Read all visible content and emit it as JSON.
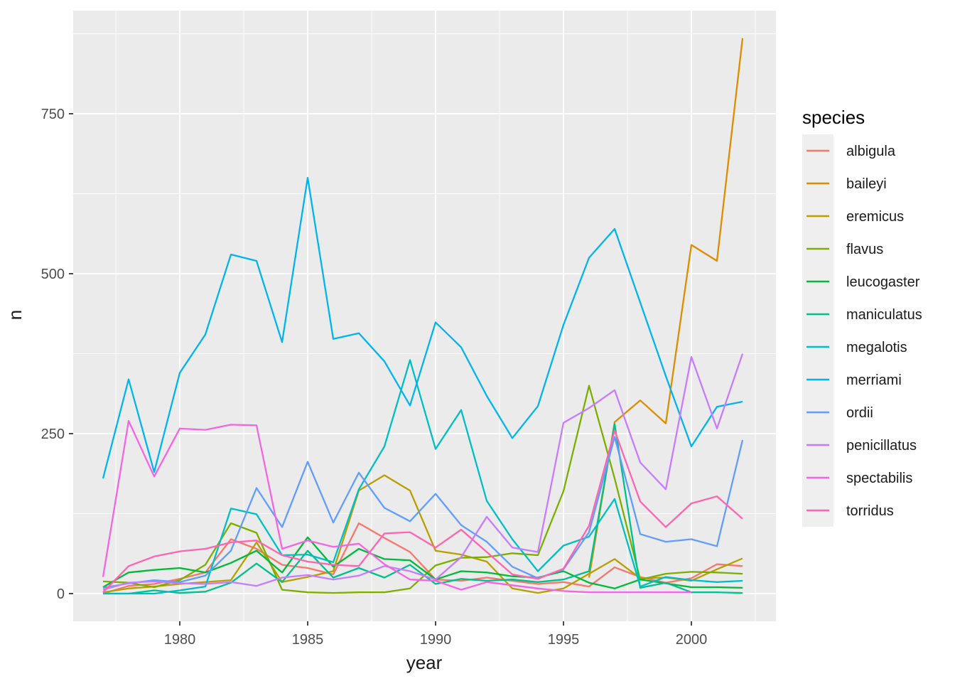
{
  "chart_data": {
    "type": "line",
    "title": "",
    "xlabel": "year",
    "ylabel": "n",
    "legend_title": "species",
    "legend_position": "right",
    "grid": true,
    "colors": {
      "page_background": "#FFFFFF",
      "panel_background": "#EBEBEB",
      "grid_major": "#FFFFFF",
      "grid_minor": "#FFFFFF",
      "tick_label": "#4D4D4D",
      "tick_mark": "#333333",
      "axis_title": "#1A1A1A",
      "legend_label": "#1A1A1A",
      "legend_key_fill": "#EFEFEF"
    },
    "xlim": [
      1975.833,
      2003.306
    ],
    "ylim": [
      -43.3,
      911.1
    ],
    "x_ticks_major": [
      "1980",
      "1985",
      "1990",
      "1995",
      "2000"
    ],
    "x_ticks_major_values": [
      1980,
      1985,
      1990,
      1995,
      2000
    ],
    "x_ticks_minor_values": [
      1977.5,
      1982.5,
      1987.5,
      1992.5,
      1997.5,
      2002.5
    ],
    "y_ticks_major": [
      "0",
      "250",
      "500",
      "750"
    ],
    "y_ticks_major_values": [
      0,
      250,
      500,
      750
    ],
    "y_ticks_minor_values": [
      125,
      375,
      625,
      875
    ],
    "x": [
      1977,
      1978,
      1979,
      1980,
      1981,
      1982,
      1983,
      1984,
      1985,
      1986,
      1987,
      1988,
      1989,
      1990,
      1991,
      1992,
      1993,
      1994,
      1995,
      1996,
      1997,
      1998,
      1999,
      2000,
      2001,
      2002
    ],
    "series": [
      {
        "name": "albigula",
        "color": "#F8766D",
        "values": [
          0,
          12,
          15,
          23,
          33,
          85,
          70,
          45,
          40,
          30,
          110,
          87,
          65,
          22,
          20,
          25,
          20,
          15,
          18,
          11,
          41,
          26,
          17,
          24,
          46,
          43
        ]
      },
      {
        "name": "baileyi",
        "color": "#DE8C00",
        "values": [
          null,
          null,
          null,
          null,
          null,
          null,
          null,
          null,
          null,
          null,
          null,
          null,
          null,
          null,
          null,
          null,
          null,
          null,
          null,
          25,
          268,
          302,
          266,
          545,
          520,
          868
        ]
      },
      {
        "name": "eremicus",
        "color": "#B79F00",
        "values": [
          2,
          8,
          11,
          15,
          18,
          21,
          80,
          18,
          26,
          35,
          161,
          185,
          161,
          67,
          61,
          50,
          8,
          1,
          8,
          31,
          54,
          24,
          25,
          20,
          38,
          55
        ]
      },
      {
        "name": "flavus",
        "color": "#7CAE00",
        "values": [
          19,
          17,
          10,
          21,
          45,
          110,
          95,
          6,
          2,
          1,
          2,
          2,
          8,
          44,
          56,
          57,
          63,
          60,
          160,
          325,
          180,
          22,
          31,
          34,
          33,
          31
        ]
      },
      {
        "name": "leucogaster",
        "color": "#00BA38",
        "values": [
          10,
          33,
          37,
          40,
          33,
          48,
          67,
          33,
          88,
          42,
          70,
          54,
          52,
          22,
          35,
          33,
          27,
          25,
          35,
          17,
          8,
          22,
          16,
          10,
          10,
          9
        ]
      },
      {
        "name": "maniculatus",
        "color": "#00C08B",
        "values": [
          0,
          0,
          5,
          1,
          3,
          17,
          47,
          18,
          67,
          25,
          40,
          25,
          45,
          15,
          23,
          20,
          22,
          18,
          22,
          35,
          265,
          9,
          17,
          2,
          2,
          1
        ]
      },
      {
        "name": "megalotis",
        "color": "#00BFC4",
        "values": [
          0,
          0,
          0,
          5,
          11,
          133,
          124,
          60,
          61,
          49,
          163,
          230,
          365,
          226,
          287,
          145,
          85,
          35,
          75,
          89,
          148,
          11,
          26,
          21,
          18,
          20
        ]
      },
      {
        "name": "merriami",
        "color": "#00B4F0",
        "values": [
          180,
          335,
          190,
          345,
          405,
          530,
          520,
          393,
          650,
          398,
          407,
          363,
          294,
          424,
          385,
          309,
          243,
          293,
          420,
          525,
          570,
          455,
          340,
          230,
          292,
          300
        ]
      },
      {
        "name": "ordii",
        "color": "#619CFF",
        "values": [
          9,
          16,
          21,
          18,
          28,
          67,
          165,
          104,
          206,
          111,
          189,
          134,
          113,
          156,
          107,
          81,
          42,
          24,
          38,
          96,
          245,
          93,
          81,
          85,
          74,
          240
        ]
      },
      {
        "name": "penicillatus",
        "color": "#C77CFF",
        "values": [
          6,
          17,
          19,
          16,
          15,
          18,
          12,
          25,
          29,
          22,
          28,
          43,
          35,
          22,
          57,
          120,
          72,
          65,
          267,
          290,
          318,
          205,
          163,
          370,
          258,
          375
        ]
      },
      {
        "name": "spectabilis",
        "color": "#F564E3",
        "values": [
          26,
          270,
          183,
          258,
          256,
          264,
          263,
          70,
          83,
          73,
          78,
          46,
          22,
          20,
          6,
          18,
          13,
          8,
          4,
          2,
          2,
          2,
          2,
          2,
          null,
          null
        ]
      },
      {
        "name": "torridus",
        "color": "#FF64B0",
        "values": [
          2,
          43,
          58,
          66,
          70,
          80,
          83,
          60,
          50,
          45,
          43,
          94,
          96,
          72,
          100,
          65,
          30,
          23,
          39,
          106,
          255,
          144,
          104,
          141,
          152,
          117
        ]
      }
    ]
  }
}
